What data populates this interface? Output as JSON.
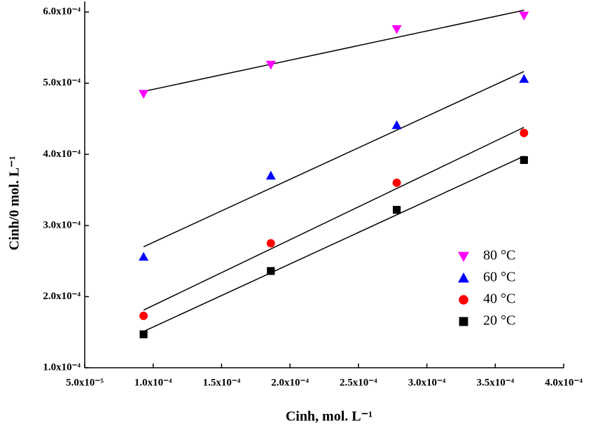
{
  "chart_data": {
    "type": "scatter",
    "xlabel": "Cinh, mol. L⁻¹",
    "ylabel": "Cinh/0 mol. L⁻¹",
    "xlim": [
      5e-05,
      0.0004
    ],
    "ylim": [
      0.0001,
      0.000615
    ],
    "xticks": [
      {
        "value": 5e-05,
        "label": "5.0x10⁻⁵"
      },
      {
        "value": 0.0001,
        "label": "1.0x10⁻⁴"
      },
      {
        "value": 0.00015,
        "label": "1.5x10⁻⁴"
      },
      {
        "value": 0.0002,
        "label": "2.0x10⁻⁴"
      },
      {
        "value": 0.00025,
        "label": "2.5x10⁻⁴"
      },
      {
        "value": 0.0003,
        "label": "3.0x10⁻⁴"
      },
      {
        "value": 0.00035,
        "label": "3.5x10⁻⁴"
      },
      {
        "value": 0.0004,
        "label": "4.0x10⁻⁴"
      }
    ],
    "yticks": [
      {
        "value": 0.0001,
        "label": "1.0x10⁻⁴"
      },
      {
        "value": 0.0002,
        "label": "2.0x10⁻⁴"
      },
      {
        "value": 0.0003,
        "label": "3.0x10⁻⁴"
      },
      {
        "value": 0.0004,
        "label": "4.0x10⁻⁴"
      },
      {
        "value": 0.0005,
        "label": "5.0x10⁻⁴"
      },
      {
        "value": 0.0006,
        "label": "6.0x10⁻⁴"
      }
    ],
    "x": [
      9.3e-05,
      0.000186,
      0.000278,
      0.000371
    ],
    "fit_lines": true,
    "legend": "lower right",
    "series": [
      {
        "name": "80 °C",
        "color": "#ff00ff",
        "marker": "triangle-down",
        "values": [
          0.000485,
          0.000526,
          0.000576,
          0.000595
        ]
      },
      {
        "name": "60 °C",
        "color": "#0000ff",
        "marker": "triangle-up",
        "values": [
          0.000256,
          0.00037,
          0.000441,
          0.000506
        ]
      },
      {
        "name": "40 °C",
        "color": "#ff0000",
        "marker": "circle",
        "values": [
          0.000173,
          0.000275,
          0.00036,
          0.00043
        ]
      },
      {
        "name": "20 °C",
        "color": "#000000",
        "marker": "square",
        "values": [
          0.000147,
          0.000236,
          0.000322,
          0.000392
        ]
      }
    ]
  }
}
